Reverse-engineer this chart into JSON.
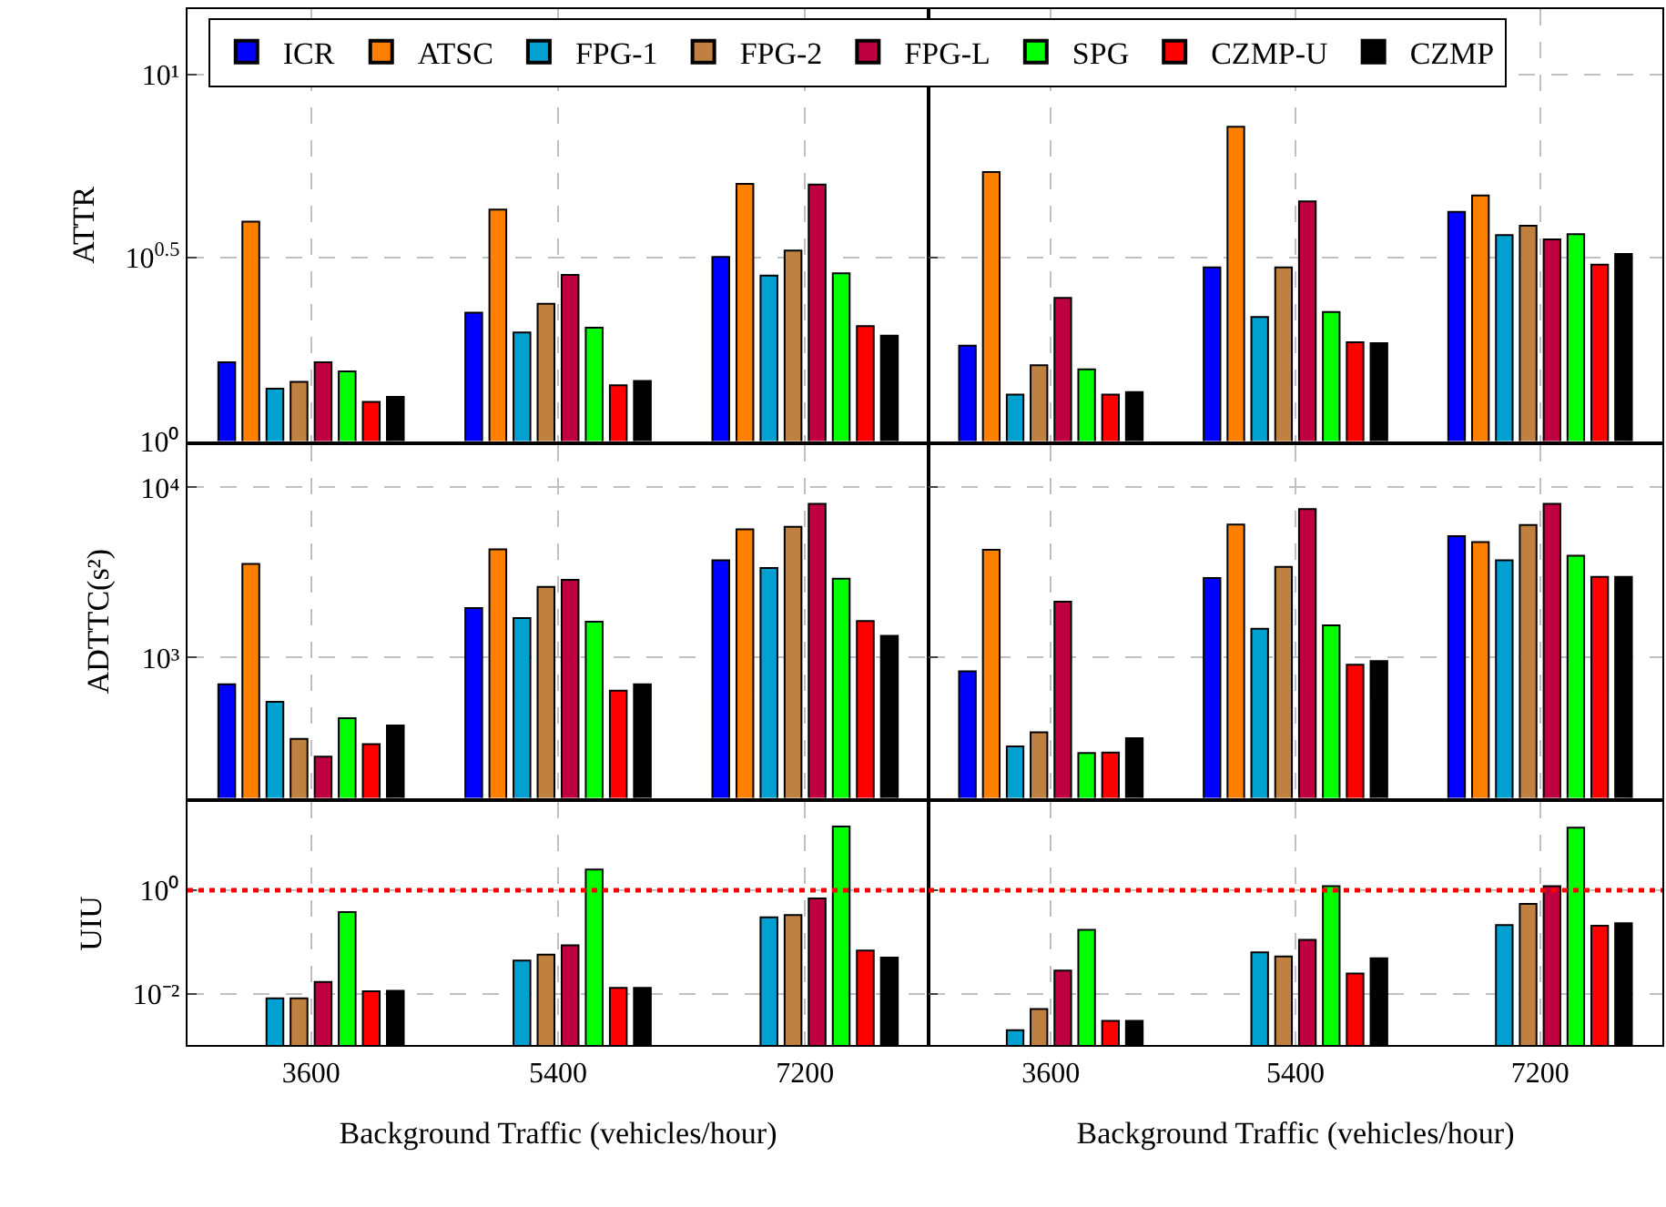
{
  "chart_data": [
    {
      "type": "bar",
      "ylabel": "ATTR",
      "categories": [
        "3600",
        "5400",
        "7200"
      ],
      "log": true,
      "ylim": [
        1,
        15.1
      ],
      "yticks": [
        {
          "value": 1,
          "label": "10⁰"
        },
        {
          "value": 3.162,
          "label": "10$^{0.5}$"
        },
        {
          "value": 10,
          "label": "10¹"
        }
      ],
      "grid": true,
      "tick_labels": "y",
      "legend": "top",
      "series": [
        {
          "name": "ICR",
          "color": "#0000ff",
          "values": [
            1.64,
            2.24,
            3.18
          ]
        },
        {
          "name": "ATSC",
          "color": "#ff8000",
          "values": [
            3.97,
            4.28,
            5.03
          ]
        },
        {
          "name": "FPG-1",
          "color": "#00a0d0",
          "values": [
            1.39,
            1.98,
            2.83
          ]
        },
        {
          "name": "FPG-2",
          "color": "#bf8040",
          "values": [
            1.45,
            2.37,
            3.31
          ]
        },
        {
          "name": "FPG-L",
          "color": "#bf0040",
          "values": [
            1.64,
            2.84,
            5.01
          ]
        },
        {
          "name": "SPG",
          "color": "#00ff00",
          "values": [
            1.55,
            2.04,
            2.87
          ]
        },
        {
          "name": "CZMP-U",
          "color": "#ff0000",
          "values": [
            1.28,
            1.42,
            2.06
          ]
        },
        {
          "name": "CZMP",
          "color": "#000000",
          "values": [
            1.32,
            1.46,
            1.94
          ]
        }
      ]
    },
    {
      "type": "bar",
      "categories": [
        "3600",
        "5400",
        "7200"
      ],
      "log": true,
      "ylim": [
        1,
        15.1
      ],
      "yticks": [
        {
          "value": 1,
          "label": "10⁰"
        },
        {
          "value": 3.162,
          "label": "10$^{0.5}$"
        },
        {
          "value": 10,
          "label": "10¹"
        }
      ],
      "grid": true,
      "tick_labels": false,
      "series": [
        {
          "color": "#0000ff",
          "values": [
            1.82,
            2.98,
            4.22
          ]
        },
        {
          "color": "#ff8000",
          "values": [
            5.42,
            7.21,
            4.68
          ]
        },
        {
          "color": "#00a0d0",
          "values": [
            1.34,
            2.18,
            3.65
          ]
        },
        {
          "color": "#bf8040",
          "values": [
            1.61,
            2.98,
            3.87
          ]
        },
        {
          "color": "#bf0040",
          "values": [
            2.46,
            4.51,
            3.55
          ]
        },
        {
          "color": "#00ff00",
          "values": [
            1.57,
            2.25,
            3.67
          ]
        },
        {
          "color": "#ff0000",
          "values": [
            1.34,
            1.86,
            3.03
          ]
        },
        {
          "color": "#000000",
          "values": [
            1.36,
            1.85,
            3.24
          ]
        }
      ]
    },
    {
      "type": "bar",
      "ylabel": "ADTTC(s²)",
      "categories": [
        "3600",
        "5400",
        "7200"
      ],
      "log": true,
      "ylim": [
        150,
        17800
      ],
      "yticks": [
        {
          "value": 1000,
          "label": "10³"
        },
        {
          "value": 10000,
          "label": "10⁴"
        }
      ],
      "grid": true,
      "tick_labels": "y",
      "series": [
        {
          "color": "#0000ff",
          "values": [
            698,
            1954,
            3724
          ]
        },
        {
          "color": "#ff8000",
          "values": [
            3548,
            4330,
            5675
          ]
        },
        {
          "color": "#00a0d0",
          "values": [
            550,
            1708,
            3357
          ]
        },
        {
          "color": "#bf8040",
          "values": [
            333,
            2600,
            5866
          ]
        },
        {
          "color": "#bf0040",
          "values": [
            262,
            2862,
            8000
          ]
        },
        {
          "color": "#00ff00",
          "values": [
            441,
            1626,
            2911
          ]
        },
        {
          "color": "#ff0000",
          "values": [
            310,
            640,
            1640
          ]
        },
        {
          "color": "#000000",
          "values": [
            400,
            698,
            1343
          ]
        }
      ]
    },
    {
      "type": "bar",
      "categories": [
        "3600",
        "5400",
        "7200"
      ],
      "log": true,
      "ylim": [
        150,
        17800
      ],
      "yticks": [
        {
          "value": 1000,
          "label": "10³"
        },
        {
          "value": 10000,
          "label": "10⁴"
        }
      ],
      "grid": true,
      "tick_labels": false,
      "series": [
        {
          "color": "#0000ff",
          "values": [
            831,
            2931,
            5166
          ]
        },
        {
          "color": "#ff8000",
          "values": [
            4296,
            6053,
            4768
          ]
        },
        {
          "color": "#00a0d0",
          "values": [
            301,
            1479,
            3724
          ]
        },
        {
          "color": "#bf8040",
          "values": [
            364,
            3411,
            6009
          ]
        },
        {
          "color": "#bf0040",
          "values": [
            2133,
            7450,
            8000
          ]
        },
        {
          "color": "#00ff00",
          "values": [
            275,
            1549,
            3970
          ]
        },
        {
          "color": "#ff0000",
          "values": [
            277,
            908,
            2978
          ]
        },
        {
          "color": "#000000",
          "values": [
            336,
            953,
            2978
          ]
        }
      ]
    },
    {
      "type": "bar",
      "ylabel": "UIU",
      "xlabel": "Background Traffic (vehicles/hour)",
      "categories": [
        "3600",
        "5400",
        "7200"
      ],
      "log": true,
      "ylim": [
        0.001,
        52
      ],
      "yticks": [
        {
          "value": 0.01,
          "label": "10⁻²"
        },
        {
          "value": 1,
          "label": "10⁰"
        }
      ],
      "grid": true,
      "ref_lines": [
        {
          "axis": "y",
          "value": 1,
          "color": "#ff0000",
          "line_style": "dotted"
        }
      ],
      "series": [
        {
          "color": "#0000ff",
          "values": [
            null,
            null,
            null
          ]
        },
        {
          "color": "#ff8000",
          "values": [
            null,
            null,
            null
          ]
        },
        {
          "color": "#00a0d0",
          "values": [
            0.0081,
            0.0437,
            0.298
          ]
        },
        {
          "color": "#bf8040",
          "values": [
            0.0081,
            0.0568,
            0.331
          ]
        },
        {
          "color": "#bf0040",
          "values": [
            0.0169,
            0.0865,
            0.692
          ]
        },
        {
          "color": "#00ff00",
          "values": [
            0.378,
            2.51,
            17.1
          ]
        },
        {
          "color": "#ff0000",
          "values": [
            0.0111,
            0.013,
            0.0683
          ]
        },
        {
          "color": "#000000",
          "values": [
            0.0114,
            0.013,
            0.0498
          ]
        }
      ]
    },
    {
      "type": "bar",
      "xlabel": "Background Traffic (vehicles/hour)",
      "categories": [
        "3600",
        "5400",
        "7200"
      ],
      "log": true,
      "ylim": [
        0.001,
        52
      ],
      "yticks": [
        {
          "value": 0.01,
          "label": "10⁻²"
        },
        {
          "value": 1,
          "label": "10⁰"
        }
      ],
      "grid": true,
      "tick_labels": "x",
      "ref_lines": [
        {
          "axis": "y",
          "value": 1,
          "color": "#ff0000",
          "line_style": "dotted"
        }
      ],
      "series": [
        {
          "color": "#0000ff",
          "values": [
            null,
            null,
            null
          ]
        },
        {
          "color": "#ff8000",
          "values": [
            null,
            null,
            null
          ]
        },
        {
          "color": "#00a0d0",
          "values": [
            0.00196,
            0.0631,
            0.212
          ]
        },
        {
          "color": "#bf8040",
          "values": [
            0.00505,
            0.0525,
            0.546
          ]
        },
        {
          "color": "#bf0040",
          "values": [
            0.0279,
            0.11,
            1.2
          ]
        },
        {
          "color": "#00ff00",
          "values": [
            0.171,
            1.2,
            16.3
          ]
        },
        {
          "color": "#ff0000",
          "values": [
            0.00298,
            0.0245,
            0.206
          ]
        },
        {
          "color": "#000000",
          "values": [
            0.00298,
            0.0485,
            0.229
          ]
        }
      ]
    }
  ]
}
